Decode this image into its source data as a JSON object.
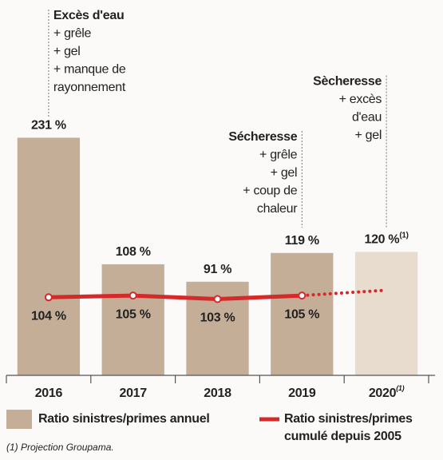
{
  "chart_data": {
    "type": "bar",
    "categories": [
      "2016",
      "2017",
      "2018",
      "2019",
      "2020"
    ],
    "footnote_ref": "(1)",
    "footnote_ref_index": 4,
    "projected": [
      false,
      false,
      false,
      false,
      true
    ],
    "ylim": [
      0,
      250
    ],
    "y2lim": [
      60,
      205
    ],
    "series": [
      {
        "name": "Ratio sinistres/primes annuel",
        "type": "bar",
        "color": "#c4ae98",
        "projected_color": "#e8dccf",
        "values": [
          231,
          108,
          91,
          119,
          120
        ],
        "value_labels": [
          "231 %",
          "108 %",
          "91 %",
          "119 %",
          "120 %"
        ]
      },
      {
        "name": "Ratio sinistres/primes cumulé depuis 2005",
        "type": "line",
        "axis": "y2",
        "color": "#d42a2a",
        "values": [
          104,
          105,
          103,
          105,
          108
        ],
        "value_labels": [
          "104 %",
          "105 %",
          "103 %",
          "105 %",
          null
        ]
      }
    ],
    "annotations": [
      {
        "category_index": 0,
        "align": "left",
        "lines": [
          "Excès d'eau",
          "+ grêle",
          "+ gel",
          "+ manque de",
          "rayonnement"
        ]
      },
      {
        "category_index": 3,
        "align": "right",
        "lines": [
          "Sécheresse",
          "+ grêle",
          "+ gel",
          "+ coup de",
          "chaleur"
        ]
      },
      {
        "category_index": 4,
        "align": "right",
        "lines": [
          "Sècheresse",
          "+ excès",
          "d'eau",
          "+ gel"
        ]
      }
    ],
    "footnote": "(1) Projection Groupama."
  }
}
